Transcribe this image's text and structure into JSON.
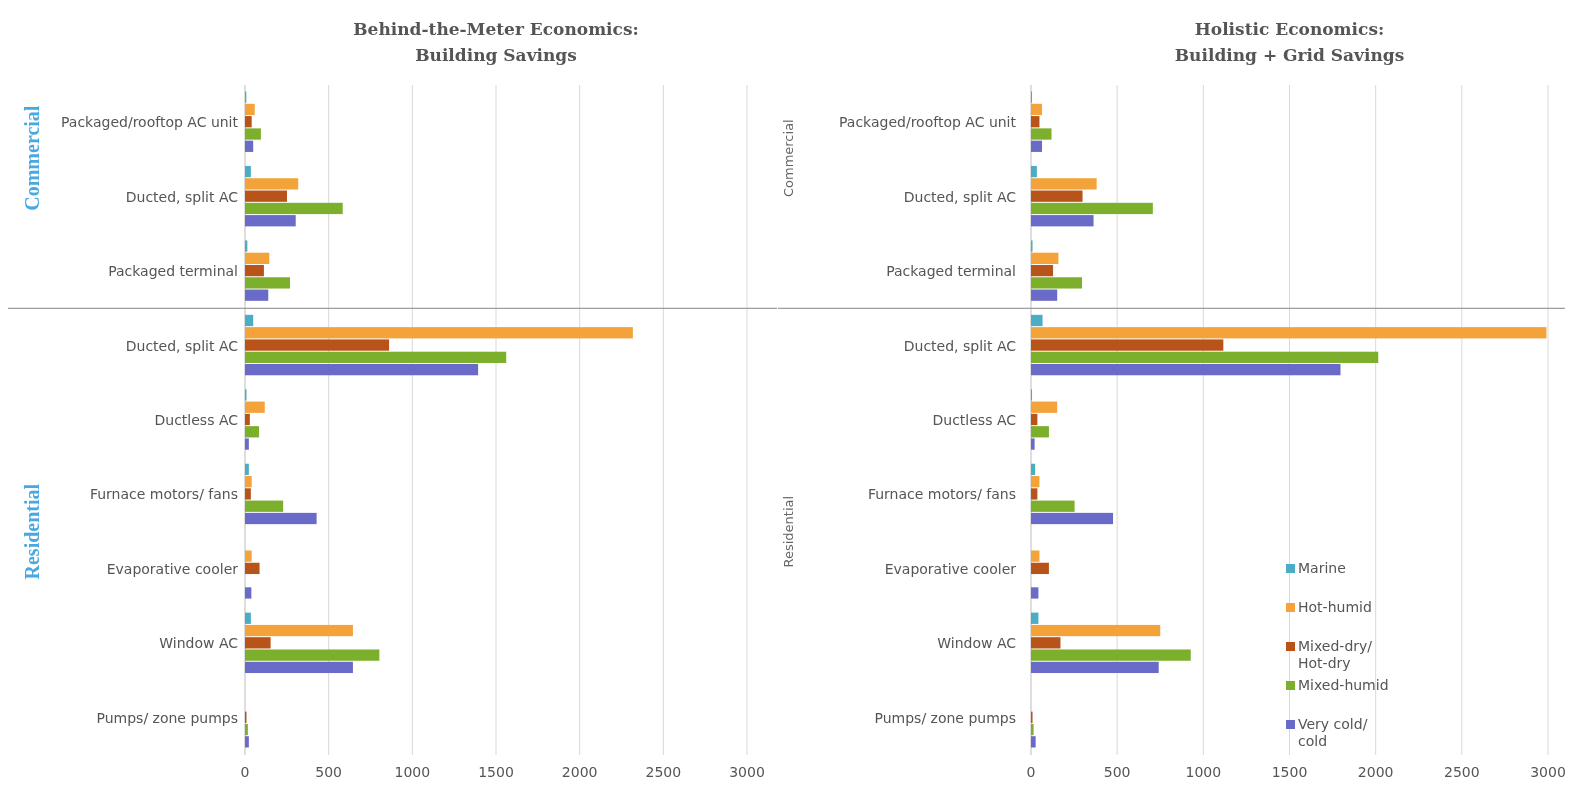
{
  "chart_data": [
    {
      "type": "bar",
      "orientation": "horizontal",
      "title": "Behind-the-Meter Economics:\nBuilding Savings",
      "categories": [
        "Packaged/rooftop AC unit",
        "Ducted, split AC",
        "Packaged terminal",
        "Ducted, split AC",
        "Ductless AC",
        "Furnace motors/ fans",
        "Evaporative cooler",
        "Window AC",
        "Pumps/ zone pumps"
      ],
      "series": [
        {
          "color": "#4bacc6",
          "values": [
            8,
            35,
            14,
            49,
            9,
            23,
            0,
            35,
            0
          ]
        },
        {
          "color": "#f4a23a",
          "values": [
            58,
            318,
            145,
            2318,
            118,
            40,
            40,
            645,
            0
          ]
        },
        {
          "color": "#b8541a",
          "values": [
            40,
            251,
            113,
            861,
            29,
            35,
            87,
            153,
            9
          ]
        },
        {
          "color": "#7cb02c",
          "values": [
            95,
            584,
            269,
            1561,
            84,
            228,
            0,
            803,
            17
          ]
        },
        {
          "color": "#6a6ac8",
          "values": [
            49,
            303,
            139,
            1393,
            23,
            428,
            38,
            645,
            23
          ]
        }
      ],
      "xlim": [
        0,
        3000
      ],
      "xticks": [
        0,
        500,
        1000,
        1500,
        2000,
        2500,
        3000
      ],
      "grid": "x",
      "legend": false,
      "annotations": [
        "Commercial",
        "Residential"
      ]
    },
    {
      "type": "bar",
      "orientation": "horizontal",
      "title": "Holistic Economics:\nBuilding + Grid Savings",
      "categories": [
        "Packaged/rooftop AC unit",
        "Ducted, split AC",
        "Packaged terminal",
        "Ducted, split AC",
        "Ductless AC",
        "Furnace motors/ fans",
        "Evaporative cooler",
        "Window AC",
        "Pumps/ zone pumps"
      ],
      "series": [
        {
          "name": "Marine",
          "color": "#4bacc6",
          "values": [
            6,
            34,
            9,
            67,
            6,
            24,
            0,
            43,
            0
          ]
        },
        {
          "name": "Hot-humid",
          "color": "#f4a23a",
          "values": [
            64,
            381,
            159,
            2991,
            152,
            49,
            49,
            750,
            0
          ]
        },
        {
          "name": "Mixed-dry/ Hot-dry",
          "color": "#b8541a",
          "values": [
            49,
            299,
            128,
            1116,
            37,
            37,
            104,
            171,
            9
          ]
        },
        {
          "name": "Mixed-humid",
          "color": "#7cb02c",
          "values": [
            119,
            707,
            296,
            2015,
            104,
            253,
            0,
            927,
            15
          ]
        },
        {
          "name": "Very cold/ cold",
          "color": "#6a6ac8",
          "values": [
            64,
            363,
            152,
            1796,
            21,
            476,
            43,
            741,
            27
          ]
        }
      ],
      "xlim": [
        0,
        3000
      ],
      "xticks": [
        0,
        500,
        1000,
        1500,
        2000,
        2500,
        3000
      ],
      "grid": "x",
      "legend": "bottom right",
      "annotations": [
        "Commercial",
        "Residential"
      ]
    }
  ]
}
